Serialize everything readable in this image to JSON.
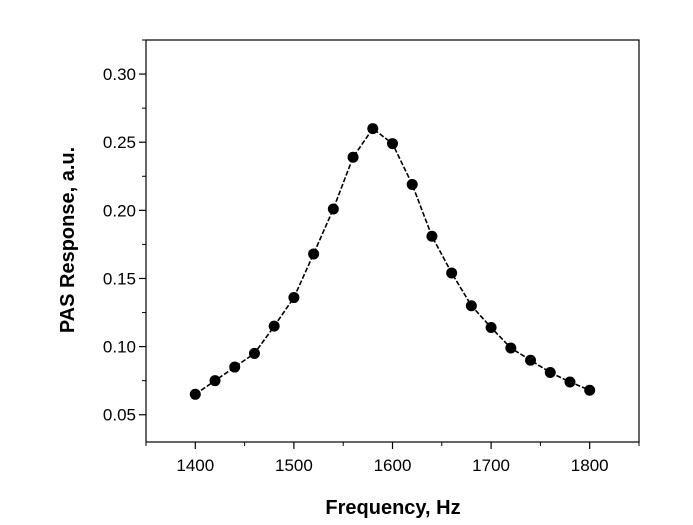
{
  "chart_data": {
    "type": "line",
    "title": "",
    "xlabel": "Frequency, Hz",
    "ylabel": "PAS Response, a.u.",
    "xlim": [
      1350,
      1850
    ],
    "ylim": [
      0.03,
      0.325
    ],
    "x_ticks": [
      1400,
      1500,
      1600,
      1700,
      1800
    ],
    "x_tick_labels": [
      "1400",
      "1500",
      "1600",
      "1700",
      "1800"
    ],
    "y_ticks": [
      0.05,
      0.1,
      0.15,
      0.2,
      0.25,
      0.3
    ],
    "y_tick_labels": [
      "0.05",
      "0.10",
      "0.15",
      "0.20",
      "0.25",
      "0.30"
    ],
    "grid": false,
    "marker": "filled-circle",
    "line_color": "#000000",
    "marker_color": "#000000",
    "series": [
      {
        "x": [
          1400,
          1420,
          1440,
          1460,
          1480,
          1500,
          1520,
          1540,
          1560,
          1580,
          1600,
          1620,
          1640,
          1660,
          1680,
          1700,
          1720,
          1740,
          1760,
          1780,
          1800
        ],
        "values": [
          0.065,
          0.075,
          0.085,
          0.095,
          0.115,
          0.136,
          0.168,
          0.201,
          0.239,
          0.26,
          0.249,
          0.219,
          0.181,
          0.154,
          0.13,
          0.114,
          0.099,
          0.09,
          0.081,
          0.074,
          0.068
        ]
      }
    ]
  }
}
